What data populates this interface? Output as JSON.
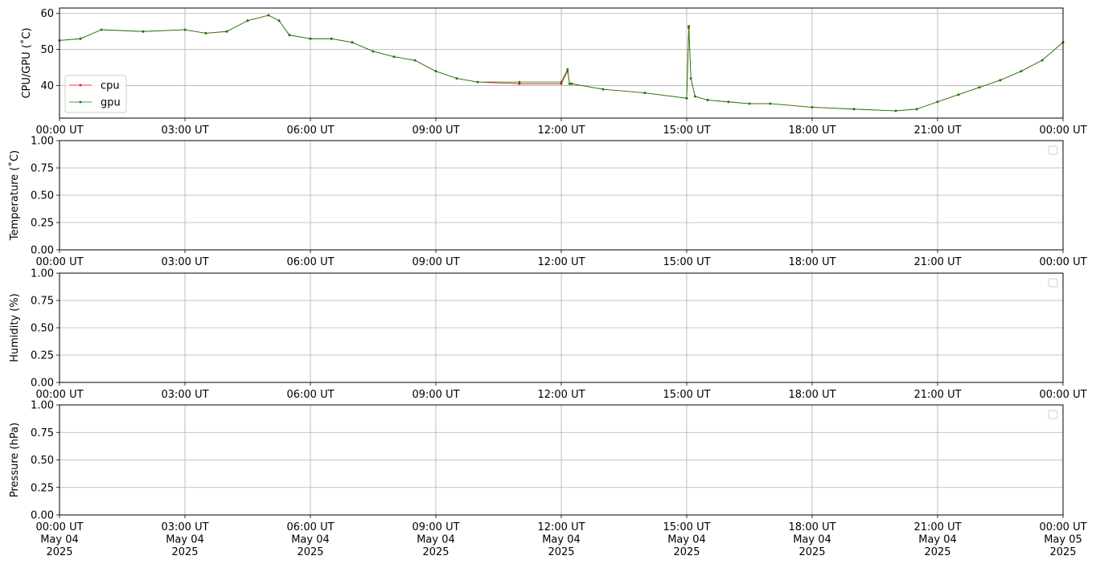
{
  "chart_data": [
    {
      "type": "line",
      "ylabel": "CPU/GPU (˚C)",
      "ylim": [
        31,
        61.5
      ],
      "yticks": [
        40,
        50,
        60
      ],
      "xlim": [
        "2025-05-04T00:00",
        "2025-05-05T00:00"
      ],
      "xtick_labels": [
        "00:00 UT",
        "03:00 UT",
        "06:00 UT",
        "09:00 UT",
        "12:00 UT",
        "15:00 UT",
        "18:00 UT",
        "21:00 UT",
        "00:00 UT"
      ],
      "grid": true,
      "legend": "lower left",
      "series": [
        {
          "name": "cpu",
          "color": "#ff0000",
          "x": [
            "00:00",
            "00:30",
            "01:00",
            "02:00",
            "03:00",
            "03:30",
            "04:00",
            "04:30",
            "05:00",
            "05:15",
            "05:30",
            "06:00",
            "06:30",
            "07:00",
            "07:30",
            "08:00",
            "08:30",
            "09:00",
            "09:30",
            "10:00",
            "11:00",
            "12:00",
            "12:09",
            "12:12",
            "12:15",
            "13:00",
            "14:00",
            "15:00",
            "15:03",
            "15:06",
            "15:12",
            "15:30",
            "16:00",
            "16:30",
            "17:00",
            "18:00",
            "19:00",
            "20:00",
            "20:30",
            "21:00",
            "21:30",
            "22:00",
            "22:30",
            "23:00",
            "23:30",
            "24:00"
          ],
          "values": [
            52.5,
            53,
            55.5,
            55,
            55.5,
            54.5,
            55,
            58,
            59.5,
            58,
            54,
            53,
            53,
            52,
            49.5,
            48,
            47,
            44,
            42,
            41,
            40.5,
            40.5,
            44,
            40.5,
            40.5,
            39,
            38,
            36.5,
            56,
            42,
            37,
            36,
            35.5,
            35,
            35,
            34,
            33.5,
            33,
            33.5,
            35.5,
            37.5,
            39.5,
            41.5,
            44,
            47,
            52
          ]
        },
        {
          "name": "gpu",
          "color": "#008000",
          "x": [
            "00:00",
            "00:30",
            "01:00",
            "02:00",
            "03:00",
            "03:30",
            "04:00",
            "04:30",
            "05:00",
            "05:15",
            "05:30",
            "06:00",
            "06:30",
            "07:00",
            "07:30",
            "08:00",
            "08:30",
            "09:00",
            "09:30",
            "10:00",
            "11:00",
            "12:00",
            "12:09",
            "12:12",
            "12:15",
            "13:00",
            "14:00",
            "15:00",
            "15:03",
            "15:06",
            "15:12",
            "15:30",
            "16:00",
            "16:30",
            "17:00",
            "18:00",
            "19:00",
            "20:00",
            "20:30",
            "21:00",
            "21:30",
            "22:00",
            "22:30",
            "23:00",
            "23:30",
            "24:00"
          ],
          "values": [
            52.5,
            53,
            55.5,
            55,
            55.5,
            54.5,
            55,
            58,
            59.5,
            58,
            54,
            53,
            53,
            52,
            49.5,
            48,
            47,
            44,
            42,
            41,
            41,
            41,
            44.5,
            40.5,
            40.5,
            39,
            38,
            36.5,
            56.5,
            42,
            37,
            36,
            35.5,
            35,
            35,
            34,
            33.5,
            33,
            33.5,
            35.5,
            37.5,
            39.5,
            41.5,
            44,
            47,
            52
          ]
        }
      ]
    },
    {
      "type": "line",
      "ylabel": "Temperature (˚C)",
      "ylim": [
        0,
        1
      ],
      "yticks": [
        "0.00",
        "0.25",
        "0.50",
        "0.75",
        "1.00"
      ],
      "xtick_labels": [
        "00:00 UT",
        "03:00 UT",
        "06:00 UT",
        "09:00 UT",
        "12:00 UT",
        "15:00 UT",
        "18:00 UT",
        "21:00 UT",
        "00:00 UT"
      ],
      "grid": true,
      "legend": "upper right (empty)",
      "series": []
    },
    {
      "type": "line",
      "ylabel": "Humidity (%)",
      "ylim": [
        0,
        1
      ],
      "yticks": [
        "0.00",
        "0.25",
        "0.50",
        "0.75",
        "1.00"
      ],
      "xtick_labels": [
        "00:00 UT",
        "03:00 UT",
        "06:00 UT",
        "09:00 UT",
        "12:00 UT",
        "15:00 UT",
        "18:00 UT",
        "21:00 UT",
        "00:00 UT"
      ],
      "grid": true,
      "legend": "upper right (empty)",
      "series": []
    },
    {
      "type": "line",
      "ylabel": "Pressure (hPa)",
      "ylim": [
        0,
        1
      ],
      "yticks": [
        "0.00",
        "0.25",
        "0.50",
        "0.75",
        "1.00"
      ],
      "xtick_labels": [
        "00:00 UT\nMay 04\n2025",
        "03:00 UT\nMay 04\n2025",
        "06:00 UT\nMay 04\n2025",
        "09:00 UT\nMay 04\n2025",
        "12:00 UT\nMay 04\n2025",
        "15:00 UT\nMay 04\n2025",
        "18:00 UT\nMay 04\n2025",
        "21:00 UT\nMay 04\n2025",
        "00:00 UT\nMay 05\n2025"
      ],
      "grid": true,
      "legend": "upper right (empty)",
      "series": []
    }
  ],
  "colors": {
    "grid": "#b0b0b0",
    "axis": "#000000",
    "cpu": "#ff0000",
    "gpu": "#008000"
  }
}
